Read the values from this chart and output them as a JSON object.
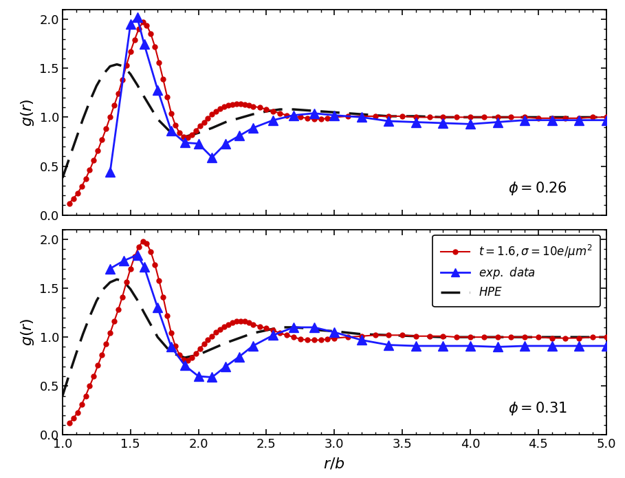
{
  "xlabel": "$r/b$",
  "ylabel": "$g(r)$",
  "xlim": [
    1.0,
    5.0
  ],
  "ylim": [
    0.0,
    2.1
  ],
  "yticks": [
    0.0,
    0.5,
    1.0,
    1.5,
    2.0
  ],
  "xticks": [
    1.0,
    1.5,
    2.0,
    2.5,
    3.0,
    3.5,
    4.0,
    4.5,
    5.0
  ],
  "phi_top": "$\\phi = 0.26$",
  "phi_bot": "$\\phi = 0.31$",
  "red_x_top": [
    1.05,
    1.08,
    1.11,
    1.14,
    1.17,
    1.2,
    1.23,
    1.26,
    1.29,
    1.32,
    1.35,
    1.38,
    1.41,
    1.44,
    1.47,
    1.5,
    1.53,
    1.56,
    1.59,
    1.62,
    1.65,
    1.68,
    1.71,
    1.74,
    1.77,
    1.8,
    1.83,
    1.86,
    1.89,
    1.92,
    1.95,
    1.98,
    2.01,
    2.04,
    2.07,
    2.1,
    2.13,
    2.16,
    2.19,
    2.22,
    2.25,
    2.28,
    2.31,
    2.34,
    2.37,
    2.4,
    2.45,
    2.5,
    2.55,
    2.6,
    2.65,
    2.7,
    2.75,
    2.8,
    2.85,
    2.9,
    2.95,
    3.0,
    3.1,
    3.2,
    3.3,
    3.4,
    3.5,
    3.6,
    3.7,
    3.8,
    3.9,
    4.0,
    4.1,
    4.2,
    4.3,
    4.4,
    4.5,
    4.6,
    4.7,
    4.8,
    4.9,
    5.0
  ],
  "red_y_top": [
    0.12,
    0.17,
    0.22,
    0.29,
    0.37,
    0.46,
    0.56,
    0.66,
    0.77,
    0.88,
    1.0,
    1.12,
    1.24,
    1.38,
    1.53,
    1.67,
    1.79,
    1.9,
    1.97,
    1.94,
    1.85,
    1.72,
    1.56,
    1.39,
    1.21,
    1.04,
    0.92,
    0.84,
    0.8,
    0.79,
    0.82,
    0.86,
    0.91,
    0.95,
    0.99,
    1.03,
    1.06,
    1.09,
    1.11,
    1.12,
    1.13,
    1.14,
    1.14,
    1.13,
    1.12,
    1.11,
    1.1,
    1.08,
    1.06,
    1.04,
    1.02,
    1.01,
    1.0,
    0.99,
    0.98,
    0.98,
    0.99,
    1.0,
    1.01,
    1.01,
    1.01,
    1.01,
    1.01,
    1.0,
    1.0,
    1.0,
    1.0,
    1.0,
    1.0,
    1.0,
    1.0,
    1.0,
    0.99,
    0.99,
    0.99,
    0.99,
    1.0,
    1.0
  ],
  "blue_x_top": [
    1.35,
    1.5,
    1.55,
    1.6,
    1.7,
    1.8,
    1.9,
    2.0,
    2.1,
    2.2,
    2.3,
    2.4,
    2.55,
    2.7,
    2.85,
    3.0,
    3.2,
    3.4,
    3.6,
    3.8,
    4.0,
    4.2,
    4.4,
    4.6,
    4.8,
    5.0
  ],
  "blue_y_top": [
    0.44,
    1.95,
    2.02,
    1.75,
    1.28,
    0.86,
    0.74,
    0.73,
    0.59,
    0.73,
    0.81,
    0.89,
    0.97,
    1.02,
    1.04,
    1.02,
    1.0,
    0.96,
    0.95,
    0.94,
    0.93,
    0.95,
    0.97,
    0.97,
    0.97,
    0.97
  ],
  "hpe_x_top": [
    1.0,
    1.05,
    1.1,
    1.15,
    1.2,
    1.25,
    1.3,
    1.35,
    1.4,
    1.45,
    1.5,
    1.55,
    1.6,
    1.7,
    1.8,
    1.9,
    2.0,
    2.1,
    2.2,
    2.3,
    2.4,
    2.5,
    2.6,
    2.7,
    2.8,
    2.9,
    3.0,
    3.2,
    3.4,
    3.6,
    3.8,
    4.0,
    4.5,
    5.0
  ],
  "hpe_y_top": [
    0.38,
    0.58,
    0.78,
    0.98,
    1.16,
    1.32,
    1.44,
    1.52,
    1.54,
    1.52,
    1.44,
    1.33,
    1.21,
    0.98,
    0.84,
    0.8,
    0.84,
    0.89,
    0.95,
    0.99,
    1.03,
    1.06,
    1.08,
    1.08,
    1.07,
    1.06,
    1.05,
    1.03,
    1.01,
    1.01,
    1.0,
    1.0,
    1.0,
    1.0
  ],
  "red_x_bot": [
    1.05,
    1.08,
    1.11,
    1.14,
    1.17,
    1.2,
    1.23,
    1.26,
    1.29,
    1.32,
    1.35,
    1.38,
    1.41,
    1.44,
    1.47,
    1.5,
    1.53,
    1.56,
    1.59,
    1.62,
    1.65,
    1.68,
    1.71,
    1.74,
    1.77,
    1.8,
    1.83,
    1.86,
    1.89,
    1.92,
    1.95,
    1.98,
    2.01,
    2.04,
    2.07,
    2.1,
    2.13,
    2.16,
    2.19,
    2.22,
    2.25,
    2.28,
    2.31,
    2.34,
    2.37,
    2.4,
    2.45,
    2.5,
    2.55,
    2.6,
    2.65,
    2.7,
    2.75,
    2.8,
    2.85,
    2.9,
    2.95,
    3.0,
    3.1,
    3.2,
    3.3,
    3.4,
    3.5,
    3.6,
    3.7,
    3.8,
    3.9,
    4.0,
    4.1,
    4.2,
    4.3,
    4.4,
    4.5,
    4.6,
    4.7,
    4.8,
    4.9,
    5.0
  ],
  "red_y_bot": [
    0.12,
    0.17,
    0.23,
    0.31,
    0.4,
    0.5,
    0.6,
    0.71,
    0.82,
    0.93,
    1.04,
    1.16,
    1.28,
    1.41,
    1.56,
    1.7,
    1.82,
    1.92,
    1.98,
    1.96,
    1.87,
    1.74,
    1.58,
    1.41,
    1.22,
    1.04,
    0.91,
    0.82,
    0.77,
    0.76,
    0.79,
    0.83,
    0.88,
    0.93,
    0.97,
    1.01,
    1.05,
    1.08,
    1.11,
    1.13,
    1.15,
    1.16,
    1.16,
    1.16,
    1.15,
    1.13,
    1.11,
    1.09,
    1.07,
    1.04,
    1.02,
    1.0,
    0.98,
    0.97,
    0.97,
    0.97,
    0.98,
    0.99,
    1.0,
    1.01,
    1.02,
    1.02,
    1.02,
    1.01,
    1.01,
    1.01,
    1.0,
    1.0,
    1.0,
    1.0,
    1.0,
    1.0,
    1.0,
    0.99,
    0.99,
    0.99,
    1.0,
    1.0
  ],
  "blue_x_bot": [
    1.35,
    1.45,
    1.55,
    1.6,
    1.7,
    1.8,
    1.9,
    2.0,
    2.1,
    2.2,
    2.3,
    2.4,
    2.55,
    2.7,
    2.85,
    3.0,
    3.2,
    3.4,
    3.6,
    3.8,
    4.0,
    4.2,
    4.4,
    4.6,
    4.8,
    5.0
  ],
  "blue_y_bot": [
    1.7,
    1.78,
    1.84,
    1.72,
    1.3,
    0.9,
    0.71,
    0.6,
    0.59,
    0.7,
    0.8,
    0.91,
    1.02,
    1.1,
    1.1,
    1.05,
    0.97,
    0.92,
    0.91,
    0.91,
    0.91,
    0.9,
    0.91,
    0.91,
    0.91,
    0.91
  ],
  "hpe_x_bot": [
    1.0,
    1.05,
    1.1,
    1.15,
    1.2,
    1.25,
    1.3,
    1.35,
    1.4,
    1.45,
    1.5,
    1.55,
    1.6,
    1.7,
    1.8,
    1.9,
    2.0,
    2.1,
    2.2,
    2.3,
    2.4,
    2.5,
    2.6,
    2.7,
    2.8,
    2.9,
    3.0,
    3.2,
    3.4,
    3.6,
    3.8,
    4.0,
    4.5,
    5.0
  ],
  "hpe_y_bot": [
    0.4,
    0.62,
    0.83,
    1.03,
    1.21,
    1.37,
    1.49,
    1.56,
    1.59,
    1.57,
    1.49,
    1.38,
    1.25,
    1.0,
    0.84,
    0.79,
    0.82,
    0.88,
    0.94,
    0.99,
    1.04,
    1.07,
    1.1,
    1.1,
    1.09,
    1.07,
    1.06,
    1.03,
    1.02,
    1.01,
    1.0,
    1.0,
    1.0,
    1.0
  ],
  "red_color": "#cc0000",
  "blue_color": "#1a1aff",
  "hpe_color": "#111111",
  "bg_color": "#ffffff"
}
